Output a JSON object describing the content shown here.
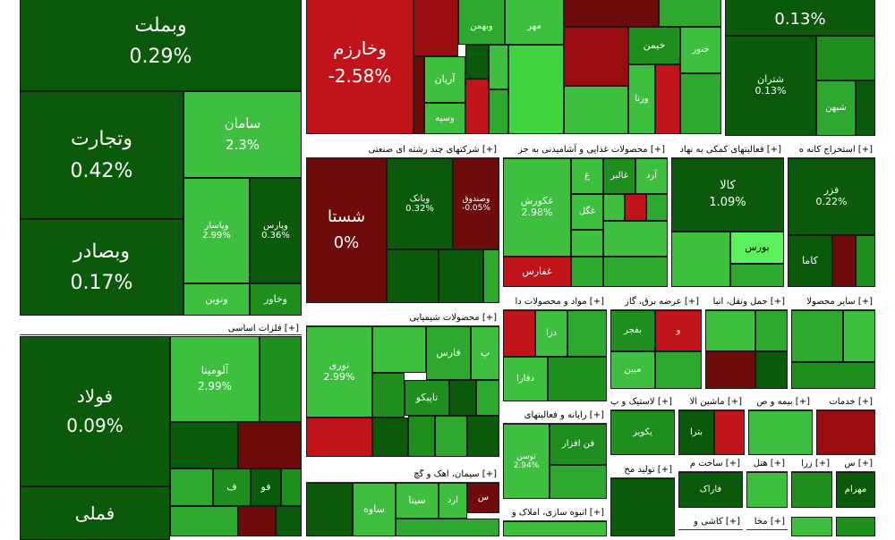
{
  "tiles": [
    {
      "id": "vbmlt",
      "name": "وبملت",
      "change": "0.29%"
    },
    {
      "id": "vtejarat",
      "name": "وتجارت",
      "change": "0.42%"
    },
    {
      "id": "vbsader",
      "name": "وبصادر",
      "change": "0.17%"
    },
    {
      "id": "saman",
      "name": "سامان",
      "change": "2.3%"
    },
    {
      "id": "vpasar",
      "name": "وپاسار",
      "change": "2.99%"
    },
    {
      "id": "vpars",
      "name": "وپارس",
      "change": "0.36%"
    },
    {
      "id": "vnovin",
      "name": "ونوین",
      "change": ""
    },
    {
      "id": "vkhavar",
      "name": "وخاور",
      "change": ""
    },
    {
      "id": "vkharazm",
      "name": "وخارزم",
      "change": "-2.58%"
    },
    {
      "id": "vbahman",
      "name": "وبهمن",
      "change": ""
    },
    {
      "id": "mehr",
      "name": "مهر",
      "change": ""
    },
    {
      "id": "arian",
      "name": "آریان",
      "change": ""
    },
    {
      "id": "vsepah",
      "name": "وسپه",
      "change": ""
    },
    {
      "id": "khemen",
      "name": "خیمن",
      "change": ""
    },
    {
      "id": "khanvar",
      "name": "خنور",
      "change": ""
    },
    {
      "id": "vrna",
      "name": "ورنا",
      "change": ""
    },
    {
      "id": "top_right",
      "name": "",
      "change": "0.13%"
    },
    {
      "id": "shetran",
      "name": "شتران",
      "change": "0.13%"
    },
    {
      "id": "shebahn",
      "name": "شبهن",
      "change": ""
    },
    {
      "id": "shasta",
      "name": "شستا",
      "change": "0%"
    },
    {
      "id": "vbank",
      "name": "وبانک",
      "change": "0.32%"
    },
    {
      "id": "vsandogh",
      "name": "وصندوق",
      "change": "-0.05%"
    },
    {
      "id": "ghkorosh",
      "name": "غکورش",
      "change": "2.98%"
    },
    {
      "id": "ghalbr",
      "name": "غالبر",
      "change": ""
    },
    {
      "id": "ghgol",
      "name": "غگل",
      "change": ""
    },
    {
      "id": "ghfars",
      "name": "غفارس",
      "change": ""
    },
    {
      "id": "kala",
      "name": "کالا",
      "change": "1.09%"
    },
    {
      "id": "bors",
      "name": "بورس",
      "change": ""
    },
    {
      "id": "ferz",
      "name": "فزر",
      "change": "0.22%"
    },
    {
      "id": "kama",
      "name": "کاما",
      "change": ""
    },
    {
      "id": "folad",
      "name": "فولاد",
      "change": "0.09%"
    },
    {
      "id": "felmi",
      "name": "فملی",
      "change": ""
    },
    {
      "id": "alumina",
      "name": "آلومینا",
      "change": "2.99%"
    },
    {
      "id": "nouri",
      "name": "نوری",
      "change": "2.99%"
    },
    {
      "id": "fars",
      "name": "فارس",
      "change": ""
    },
    {
      "id": "tapiko",
      "name": "تاپیکو",
      "change": ""
    },
    {
      "id": "bejfar",
      "name": "بفجر",
      "change": ""
    },
    {
      "id": "mobin",
      "name": "مبین",
      "change": ""
    },
    {
      "id": "dzar",
      "name": "دزا",
      "change": ""
    },
    {
      "id": "dfara",
      "name": "دفارا",
      "change": ""
    },
    {
      "id": "fanfzar",
      "name": "فن افزار",
      "change": ""
    },
    {
      "id": "tosan",
      "name": "توسن",
      "change": "2.94%"
    },
    {
      "id": "pakavir",
      "name": "یکویر",
      "change": ""
    },
    {
      "id": "btra",
      "name": "بترا",
      "change": ""
    },
    {
      "id": "sita",
      "name": "سیتا",
      "change": ""
    },
    {
      "id": "saveh",
      "name": "ساوه",
      "change": ""
    },
    {
      "id": "farak",
      "name": "فاراک",
      "change": ""
    },
    {
      "id": "mehram",
      "name": "مهرام",
      "change": ""
    }
  ],
  "headers": [
    {
      "id": "h_felezat",
      "text": "[+] فلزات اساسی"
    },
    {
      "id": "h_chand",
      "text": "[+] شرکتهای چند رشته ای صنعتی"
    },
    {
      "id": "h_ghaza",
      "text": "[+] محصولات غذایی و آشامیدنی به جز"
    },
    {
      "id": "h_komaki",
      "text": "[+] فعالیتهای کمکی به نهاد"
    },
    {
      "id": "h_estekhraj",
      "text": "[+] استخراج کانه ه"
    },
    {
      "id": "h_shimiai",
      "text": "[+] محصولات شیمیایی"
    },
    {
      "id": "h_mavad",
      "text": "[+] مواد و محصولات دا"
    },
    {
      "id": "h_barq",
      "text": "[+] عرضه برق، گاز"
    },
    {
      "id": "h_haml",
      "text": "[+] حمل ونقل، انبا"
    },
    {
      "id": "h_sayer",
      "text": "[+] سایر محصولا"
    },
    {
      "id": "h_rayane",
      "text": "[+] رایانه و فعالیتهای"
    },
    {
      "id": "h_lastik",
      "text": "[+] لاستیک و پ"
    },
    {
      "id": "h_mashin",
      "text": "[+] ماشین آلا"
    },
    {
      "id": "h_bime",
      "text": "[+] بیمه و ص"
    },
    {
      "id": "h_khadamat",
      "text": "[+] خدمات"
    },
    {
      "id": "h_siman",
      "text": "[+] سیمان، آهک و گچ"
    },
    {
      "id": "h_tolid",
      "text": "[+] تولید مح"
    },
    {
      "id": "h_sakht",
      "text": "[+] ساخت م"
    },
    {
      "id": "h_hotel",
      "text": "[+] هتل"
    },
    {
      "id": "h_zra",
      "text": "[+] زرا"
    },
    {
      "id": "h_s",
      "text": "[+] س"
    },
    {
      "id": "h_anbooh",
      "text": "[+] انبوه سازی، املاک و"
    },
    {
      "id": "h_kashi",
      "text": "[+] کاشی و"
    },
    {
      "id": "h_mokha",
      "text": "[+] مخا"
    }
  ],
  "mini_labels": [
    {
      "id": "m_felez_sm",
      "name": "فنو",
      "change": ""
    },
    {
      "id": "m_fou",
      "name": "فو",
      "change": ""
    },
    {
      "id": "m_fe",
      "name": "ف",
      "change": ""
    },
    {
      "id": "m_ghgh",
      "name": "غ",
      "change": ""
    },
    {
      "id": "m_ard",
      "name": "آرد",
      "change": ""
    },
    {
      "id": "m_khvo",
      "name": "خو",
      "change": ""
    },
    {
      "id": "m_p",
      "name": "پ",
      "change": ""
    },
    {
      "id": "m_ard2",
      "name": "ارد",
      "change": ""
    },
    {
      "id": "m_s",
      "name": "س",
      "change": ""
    },
    {
      "id": "m_o",
      "name": "و",
      "change": ""
    },
    {
      "id": "m_zra",
      "name": "زرا",
      "change": ""
    },
    {
      "id": "m_h",
      "name": "ه",
      "change": ""
    }
  ]
}
